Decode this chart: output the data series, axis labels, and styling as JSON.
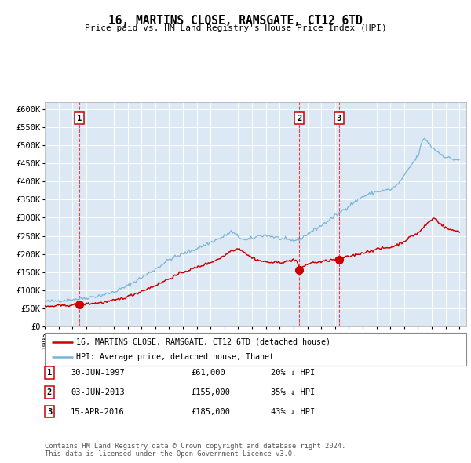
{
  "title": "16, MARTINS CLOSE, RAMSGATE, CT12 6TD",
  "subtitle": "Price paid vs. HM Land Registry's House Price Index (HPI)",
  "red_line_label": "16, MARTINS CLOSE, RAMSGATE, CT12 6TD (detached house)",
  "blue_line_label": "HPI: Average price, detached house, Thanet",
  "footer": "Contains HM Land Registry data © Crown copyright and database right 2024.\nThis data is licensed under the Open Government Licence v3.0.",
  "transactions": [
    {
      "num": 1,
      "date": "30-JUN-1997",
      "price": 61000,
      "pct": "20%",
      "direction": "↓",
      "year_x": 1997.5
    },
    {
      "num": 2,
      "date": "03-JUN-2013",
      "price": 155000,
      "pct": "35%",
      "direction": "↓",
      "year_x": 2013.42
    },
    {
      "num": 3,
      "date": "15-APR-2016",
      "price": 185000,
      "pct": "43%",
      "direction": "↓",
      "year_x": 2016.29
    }
  ],
  "ylim": [
    0,
    620000
  ],
  "yticks": [
    0,
    50000,
    100000,
    150000,
    200000,
    250000,
    300000,
    350000,
    400000,
    450000,
    500000,
    550000,
    600000
  ],
  "ytick_labels": [
    "£0",
    "£50K",
    "£100K",
    "£150K",
    "£200K",
    "£250K",
    "£300K",
    "£350K",
    "£400K",
    "£450K",
    "£500K",
    "£550K",
    "£600K"
  ],
  "xlim_start": 1995.0,
  "xlim_end": 2025.5,
  "plot_bg_color": "#dce9f5",
  "blue_color": "#7ab4d8",
  "red_color": "#cc0000",
  "grid_color": "#ffffff",
  "tx_box_edge": "#cc0000"
}
